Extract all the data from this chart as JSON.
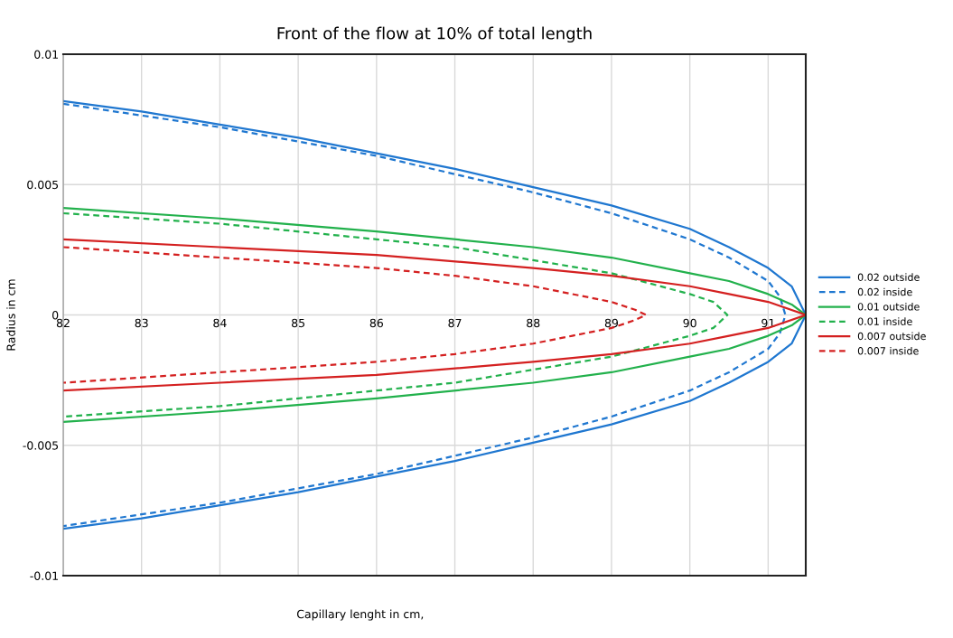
{
  "chart_data": {
    "type": "line",
    "title": "Front of the flow at 10% of total length",
    "xlabel": "Capillary lenght in cm,",
    "ylabel": "Radius in cm",
    "xlim": [
      82,
      91.48
    ],
    "xticks": [
      82,
      83,
      84,
      85,
      86,
      87,
      88,
      89,
      90,
      91
    ],
    "ylim": [
      -0.01,
      0.01
    ],
    "yticks": [
      -0.01,
      -0.005,
      0,
      0.005,
      0.01
    ],
    "grid": true,
    "legend": "right",
    "marker": "none",
    "series": [
      {
        "name": "0.02 outside",
        "color": "#1f77d0",
        "line_style": "solid",
        "x": [
          82,
          83,
          84,
          85,
          86,
          87,
          88,
          89,
          90,
          90.5,
          91,
          91.3,
          91.48,
          91.3,
          91,
          90.5,
          90,
          89,
          88,
          87,
          86,
          85,
          84,
          83,
          82
        ],
        "values": [
          0.0082,
          0.0078,
          0.0073,
          0.0068,
          0.0062,
          0.0056,
          0.0049,
          0.0042,
          0.0033,
          0.0026,
          0.0018,
          0.0011,
          0,
          -0.0011,
          -0.0018,
          -0.0026,
          -0.0033,
          -0.0042,
          -0.0049,
          -0.0056,
          -0.0062,
          -0.0068,
          -0.0073,
          -0.0078,
          -0.0082
        ]
      },
      {
        "name": "0.02 inside",
        "color": "#1f77d0",
        "line_style": "dashed",
        "x": [
          82,
          84,
          86,
          88,
          89,
          90,
          90.5,
          91,
          91.15,
          91.22,
          91.15,
          91,
          90.5,
          90,
          89,
          88,
          86,
          84,
          82
        ],
        "values": [
          0.0081,
          0.0072,
          0.0061,
          0.0047,
          0.0039,
          0.0029,
          0.0022,
          0.0013,
          0.0007,
          0,
          -0.0007,
          -0.0013,
          -0.0022,
          -0.0029,
          -0.0039,
          -0.0047,
          -0.0061,
          -0.0072,
          -0.0081
        ]
      },
      {
        "name": "0.01 outside",
        "color": "#22b14c",
        "line_style": "solid",
        "x": [
          82,
          84,
          86,
          88,
          89,
          90,
          90.5,
          91,
          91.3,
          91.48,
          91.3,
          91,
          90.5,
          90,
          89,
          88,
          86,
          84,
          82
        ],
        "values": [
          0.0041,
          0.0037,
          0.0032,
          0.0026,
          0.0022,
          0.0016,
          0.0013,
          0.0008,
          0.0004,
          0,
          -0.0004,
          -0.0008,
          -0.0013,
          -0.0016,
          -0.0022,
          -0.0026,
          -0.0032,
          -0.0037,
          -0.0041
        ]
      },
      {
        "name": "0.01 inside",
        "color": "#22b14c",
        "line_style": "dashed",
        "x": [
          82,
          84,
          86,
          87,
          88,
          89,
          89.5,
          90,
          90.3,
          90.48,
          90.3,
          90,
          89.5,
          89,
          88,
          87,
          86,
          84,
          82
        ],
        "values": [
          0.0039,
          0.0035,
          0.0029,
          0.0026,
          0.0021,
          0.0016,
          0.0012,
          0.0008,
          0.0005,
          0,
          -0.0005,
          -0.0008,
          -0.0012,
          -0.0016,
          -0.0021,
          -0.0026,
          -0.0029,
          -0.0035,
          -0.0039
        ]
      },
      {
        "name": "0.007 outside",
        "color": "#d42020",
        "line_style": "solid",
        "x": [
          82,
          84,
          86,
          88,
          89,
          90,
          90.5,
          91,
          91.48,
          91,
          90.5,
          90,
          89,
          88,
          86,
          84,
          82
        ],
        "values": [
          0.0029,
          0.0026,
          0.0023,
          0.0018,
          0.0015,
          0.0011,
          0.0008,
          0.0005,
          0,
          -0.0005,
          -0.0008,
          -0.0011,
          -0.0015,
          -0.0018,
          -0.0023,
          -0.0026,
          -0.0029
        ]
      },
      {
        "name": "0.007 inside",
        "color": "#d42020",
        "line_style": "dashed",
        "x": [
          82,
          84,
          86,
          87,
          88,
          88.5,
          89,
          89.3,
          89.44,
          89.3,
          89,
          88.5,
          88,
          87,
          86,
          84,
          82
        ],
        "values": [
          0.0026,
          0.0022,
          0.0018,
          0.0015,
          0.0011,
          0.0008,
          0.0005,
          0.0002,
          0,
          -0.0002,
          -0.0005,
          -0.0008,
          -0.0011,
          -0.0015,
          -0.0018,
          -0.0022,
          -0.0026
        ]
      }
    ]
  }
}
